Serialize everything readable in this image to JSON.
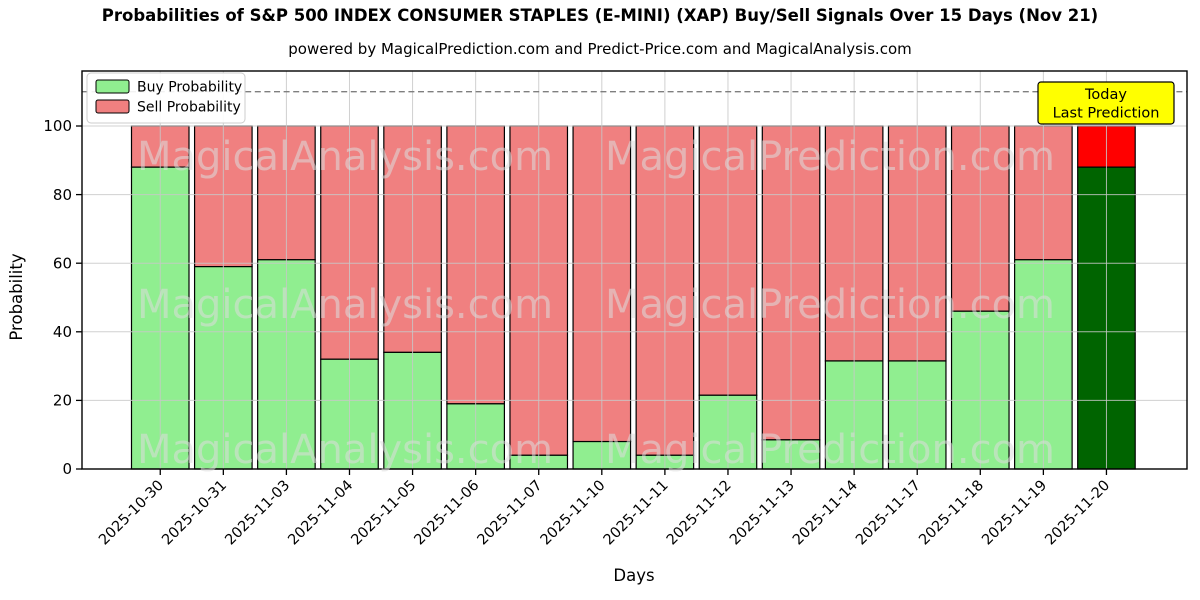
{
  "chart_data": {
    "type": "bar",
    "stacked": true,
    "title": "Probabilities of S&P 500 INDEX CONSUMER STAPLES (E-MINI) (XAP) Buy/Sell Signals Over 15 Days (Nov 21)",
    "subtitle": "powered by MagicalPrediction.com and Predict-Price.com and MagicalAnalysis.com",
    "xlabel": "Days",
    "ylabel": "Probability",
    "categories": [
      "2025-10-30",
      "2025-10-31",
      "2025-11-03",
      "2025-11-04",
      "2025-11-05",
      "2025-11-06",
      "2025-11-07",
      "2025-11-10",
      "2025-11-11",
      "2025-11-12",
      "2025-11-13",
      "2025-11-14",
      "2025-11-17",
      "2025-11-18",
      "2025-11-19",
      "2025-11-20"
    ],
    "series": [
      {
        "name": "Buy Probability",
        "color": "#90ee90",
        "last_bar_color": "#006400",
        "values": [
          88,
          59,
          61,
          32,
          34,
          19,
          4,
          8,
          4,
          21.5,
          8.5,
          31.5,
          31.5,
          46,
          61,
          88
        ]
      },
      {
        "name": "Sell Probability",
        "color": "#f08080",
        "last_bar_color": "#ff0000",
        "values": [
          12,
          41,
          39,
          68,
          66,
          81,
          96,
          92,
          96,
          78.5,
          91.5,
          68.5,
          68.5,
          54,
          39,
          12
        ]
      }
    ],
    "ylim": [
      0,
      116
    ],
    "yticks": [
      0,
      20,
      40,
      60,
      80,
      100
    ],
    "dashed_guideline_y": 110,
    "grid": true,
    "legend_position": "upper left",
    "annotation": {
      "line1": "Today",
      "line2": "Last Prediction",
      "bg_color": "#ffff00",
      "applies_to": "2025-11-20"
    },
    "watermarks": [
      "MagicalAnalysis.com",
      "MagicalPrediction.com"
    ]
  }
}
